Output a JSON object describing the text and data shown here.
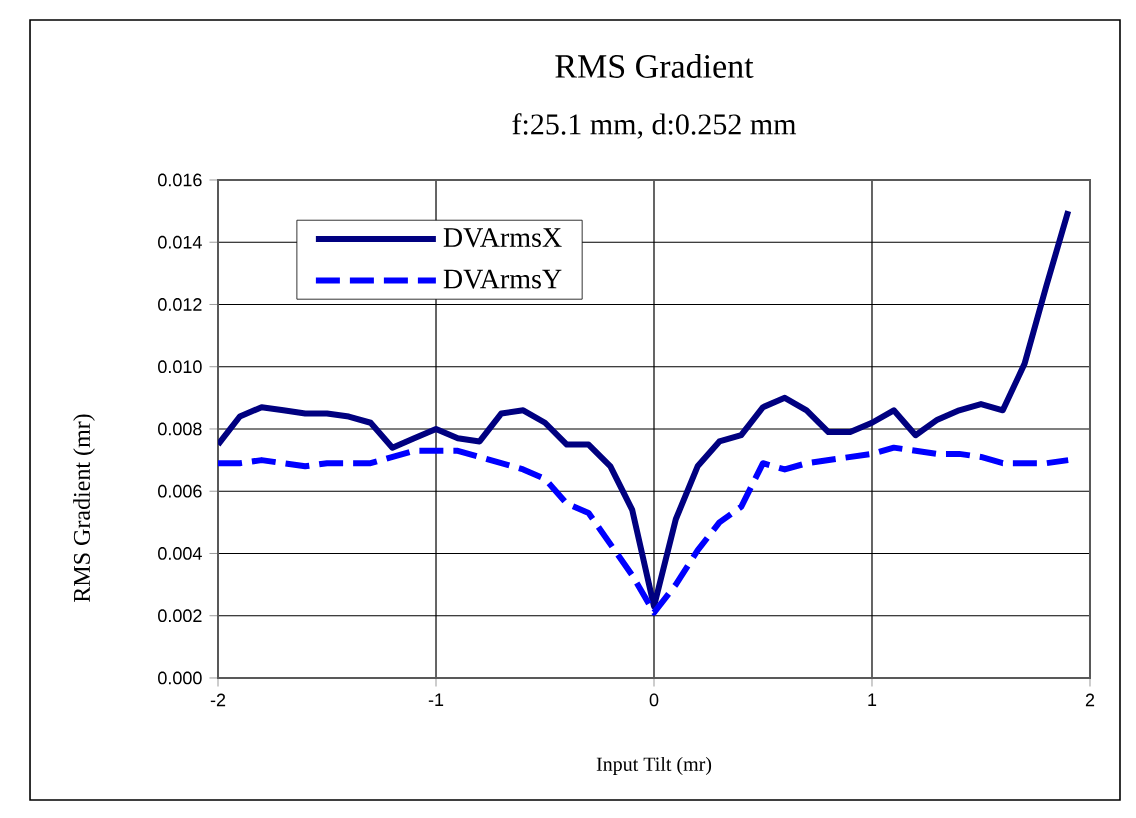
{
  "chart_data": {
    "type": "line",
    "title": "RMS Gradient",
    "subtitle": "f:25.1 mm, d:0.252 mm",
    "xlabel": "Input Tilt (mr)",
    "ylabel": "RMS Gradient (mr)",
    "x": [
      -2,
      -1.9,
      -1.8,
      -1.7,
      -1.6,
      -1.5,
      -1.4,
      -1.3,
      -1.2,
      -1.1,
      -1.0,
      -0.9,
      -0.8,
      -0.7,
      -0.6,
      -0.5,
      -0.4,
      -0.3,
      -0.2,
      -0.1,
      0,
      0.1,
      0.2,
      0.3,
      0.4,
      0.5,
      0.6,
      0.7,
      0.8,
      0.9,
      1.0,
      1.1,
      1.2,
      1.3,
      1.4,
      1.5,
      1.6,
      1.7,
      1.8,
      1.9
    ],
    "series": [
      {
        "name": "DVArmsX",
        "color": "#000080",
        "line_style": "solid",
        "values": [
          0.0075,
          0.0084,
          0.0087,
          0.0086,
          0.0085,
          0.0085,
          0.0084,
          0.0082,
          0.0074,
          0.0077,
          0.008,
          0.0077,
          0.0076,
          0.0085,
          0.0086,
          0.0082,
          0.0075,
          0.0075,
          0.0068,
          0.0054,
          0.0023,
          0.0051,
          0.0068,
          0.0076,
          0.0078,
          0.0087,
          0.009,
          0.0086,
          0.0079,
          0.0079,
          0.0082,
          0.0086,
          0.0078,
          0.0083,
          0.0086,
          0.0088,
          0.0086,
          0.0101,
          0.0126,
          0.015
        ]
      },
      {
        "name": "DVArmsY",
        "color": "#0000ff",
        "line_style": "dashed",
        "values": [
          0.0069,
          0.0069,
          0.007,
          0.0069,
          0.0068,
          0.0069,
          0.0069,
          0.0069,
          0.0071,
          0.0073,
          0.0073,
          0.0073,
          0.0071,
          0.0069,
          0.0067,
          0.0064,
          0.0056,
          0.0053,
          0.0043,
          0.0033,
          0.0021,
          0.003,
          0.0041,
          0.005,
          0.0055,
          0.0069,
          0.0067,
          0.0069,
          0.007,
          0.0071,
          0.0072,
          0.0074,
          0.0073,
          0.0072,
          0.0072,
          0.0071,
          0.0069,
          0.0069,
          0.0069,
          0.007
        ]
      }
    ],
    "xlim": [
      -2,
      2
    ],
    "xticks": [
      -2,
      -1,
      0,
      1,
      2
    ],
    "ylim": [
      0,
      0.016
    ],
    "yticks": [
      {
        "value": 0,
        "label": "0.000"
      },
      {
        "value": 0.002,
        "label": "0.002"
      },
      {
        "value": 0.004,
        "label": "0.004"
      },
      {
        "value": 0.006,
        "label": "0.006"
      },
      {
        "value": 0.008,
        "label": "0.008"
      },
      {
        "value": 0.01,
        "label": "0.010"
      },
      {
        "value": 0.012,
        "label": "0.012"
      },
      {
        "value": 0.014,
        "label": "0.014"
      },
      {
        "value": 0.016,
        "label": "0.016"
      }
    ],
    "grid": true,
    "legend": "top left"
  }
}
